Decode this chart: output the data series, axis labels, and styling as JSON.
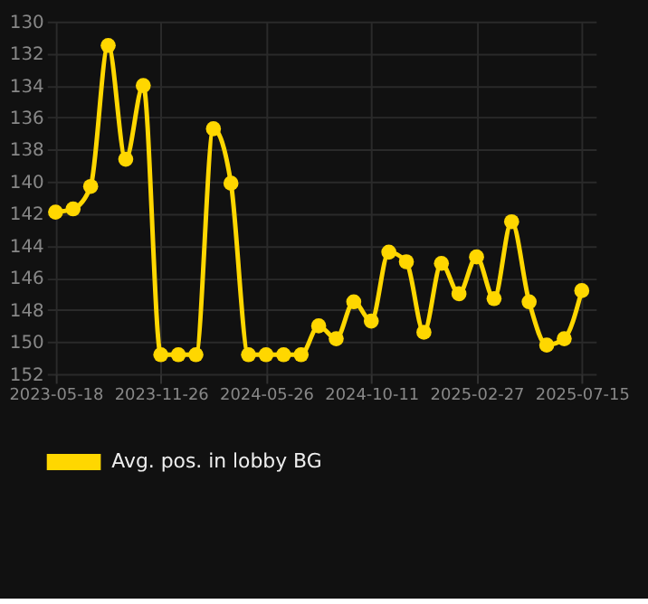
{
  "chart_data": {
    "type": "line",
    "categories": [
      "2023-05-18",
      null,
      null,
      null,
      null,
      null,
      "2023-11-26",
      null,
      null,
      null,
      null,
      null,
      "2024-05-26",
      null,
      null,
      null,
      null,
      null,
      "2024-10-11",
      null,
      null,
      null,
      null,
      null,
      "2025-02-27",
      null,
      null,
      null,
      null,
      null,
      "2025-07-15"
    ],
    "series": [
      {
        "name": "Avg. pos. in lobby BG",
        "color": "#ffd700",
        "values": [
          141.9,
          141.7,
          140.3,
          131.5,
          138.6,
          134.0,
          150.8,
          150.8,
          150.8,
          136.7,
          140.1,
          150.8,
          150.8,
          150.8,
          150.8,
          149.0,
          149.8,
          147.5,
          148.7,
          144.4,
          145.0,
          149.4,
          145.1,
          147.0,
          144.7,
          147.3,
          142.5,
          147.5,
          150.2,
          149.8,
          146.8
        ]
      }
    ],
    "ylim": [
      152,
      130
    ],
    "yticks": [
      130,
      132,
      134,
      136,
      138,
      140,
      142,
      144,
      146,
      148,
      150,
      152
    ],
    "grid": true,
    "legend": "bottom",
    "marker": "circle",
    "line_style": "solid"
  }
}
